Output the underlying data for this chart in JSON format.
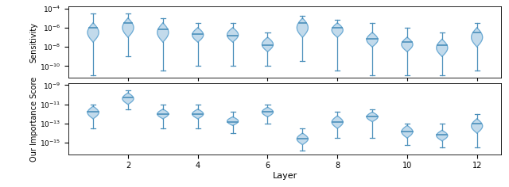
{
  "n_layers": 12,
  "top_ylabel": "Sensitivity",
  "bottom_ylabel": "Our Importance Score",
  "xlabel": "Layer",
  "xtick_positions": [
    2,
    4,
    6,
    8,
    10,
    12
  ],
  "violin_color": "#b8d4e8",
  "violin_edge_color": "#6aaad4",
  "line_color": "#4a8fba",
  "top": {
    "ylim_log": [
      -11.2,
      -3.8
    ],
    "medians_log": [
      -6.0,
      -5.5,
      -6.2,
      -6.7,
      -6.8,
      -7.8,
      -5.5,
      -6.0,
      -7.2,
      -7.5,
      -7.8,
      -6.5
    ],
    "q1_log": [
      -7.5,
      -7.0,
      -7.5,
      -7.5,
      -7.5,
      -8.5,
      -7.0,
      -7.0,
      -8.0,
      -8.5,
      -9.0,
      -8.0
    ],
    "q3_log": [
      -5.5,
      -5.0,
      -5.5,
      -6.0,
      -6.0,
      -7.0,
      -5.0,
      -5.5,
      -6.5,
      -7.0,
      -7.2,
      -6.0
    ],
    "wlo_log": [
      -11.0,
      -9.0,
      -10.5,
      -10.0,
      -10.0,
      -10.0,
      -9.5,
      -10.5,
      -11.0,
      -11.0,
      -11.0,
      -10.5
    ],
    "whi_log": [
      -4.5,
      -4.5,
      -5.0,
      -5.5,
      -5.5,
      -6.5,
      -4.8,
      -5.2,
      -5.5,
      -6.0,
      -6.5,
      -5.5
    ]
  },
  "bottom": {
    "ylim_log": [
      -16.2,
      -8.8
    ],
    "medians_log": [
      -11.8,
      -10.3,
      -12.0,
      -12.0,
      -12.8,
      -11.8,
      -14.6,
      -12.8,
      -12.3,
      -13.8,
      -14.2,
      -13.0
    ],
    "q1_log": [
      -12.5,
      -11.0,
      -12.5,
      -12.5,
      -13.2,
      -12.3,
      -15.2,
      -13.5,
      -12.8,
      -14.5,
      -14.8,
      -14.0
    ],
    "q3_log": [
      -11.2,
      -9.8,
      -11.5,
      -11.5,
      -12.3,
      -11.3,
      -14.0,
      -12.2,
      -11.8,
      -13.2,
      -13.7,
      -12.5
    ],
    "wlo_log": [
      -13.5,
      -11.5,
      -13.5,
      -13.5,
      -14.0,
      -13.0,
      -15.8,
      -14.5,
      -14.5,
      -15.2,
      -15.5,
      -15.5
    ],
    "whi_log": [
      -11.0,
      -9.5,
      -11.0,
      -11.0,
      -11.8,
      -11.0,
      -13.5,
      -11.8,
      -11.5,
      -13.0,
      -13.0,
      -12.0
    ]
  }
}
